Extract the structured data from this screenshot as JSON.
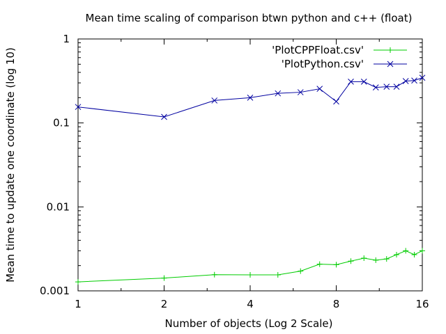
{
  "chart_data": {
    "type": "line",
    "title": "Mean time scaling of comparison btwn python and c++  (float)",
    "xlabel": "Number of objects (Log 2 Scale)",
    "ylabel": "Mean time to update one coordinate (log 10)",
    "x_scale": "log2",
    "y_scale": "log10",
    "xlim": [
      1,
      16
    ],
    "ylim": [
      0.001,
      1
    ],
    "x_ticks": [
      1,
      2,
      4,
      8,
      16
    ],
    "x_tick_labels": [
      "1",
      "2",
      "4",
      "8",
      "16"
    ],
    "y_ticks": [
      0.001,
      0.01,
      0.1,
      1
    ],
    "y_tick_labels": [
      "0.001",
      "0.01",
      "0.1",
      "1"
    ],
    "grid": false,
    "legend_position": "top-right",
    "series": [
      {
        "name": "'PlotCPPFloat.csv'",
        "color": "#00cc00",
        "marker": "plus",
        "x": [
          1,
          2,
          3,
          4,
          5,
          6,
          7,
          8,
          9,
          10,
          11,
          12,
          13,
          14,
          15,
          16
        ],
        "y": [
          0.00128,
          0.00142,
          0.00156,
          0.00155,
          0.00155,
          0.00172,
          0.00208,
          0.00205,
          0.00226,
          0.00245,
          0.00232,
          0.0024,
          0.0027,
          0.003,
          0.0027,
          0.003
        ]
      },
      {
        "name": "'PlotPython.csv'",
        "color": "#0000a0",
        "marker": "cross",
        "x": [
          1,
          2,
          3,
          4,
          5,
          6,
          7,
          8,
          9,
          10,
          11,
          12,
          13,
          14,
          15,
          16
        ],
        "y": [
          0.155,
          0.118,
          0.185,
          0.2,
          0.225,
          0.232,
          0.255,
          0.18,
          0.31,
          0.31,
          0.265,
          0.27,
          0.27,
          0.315,
          0.32,
          0.345
        ]
      }
    ]
  }
}
